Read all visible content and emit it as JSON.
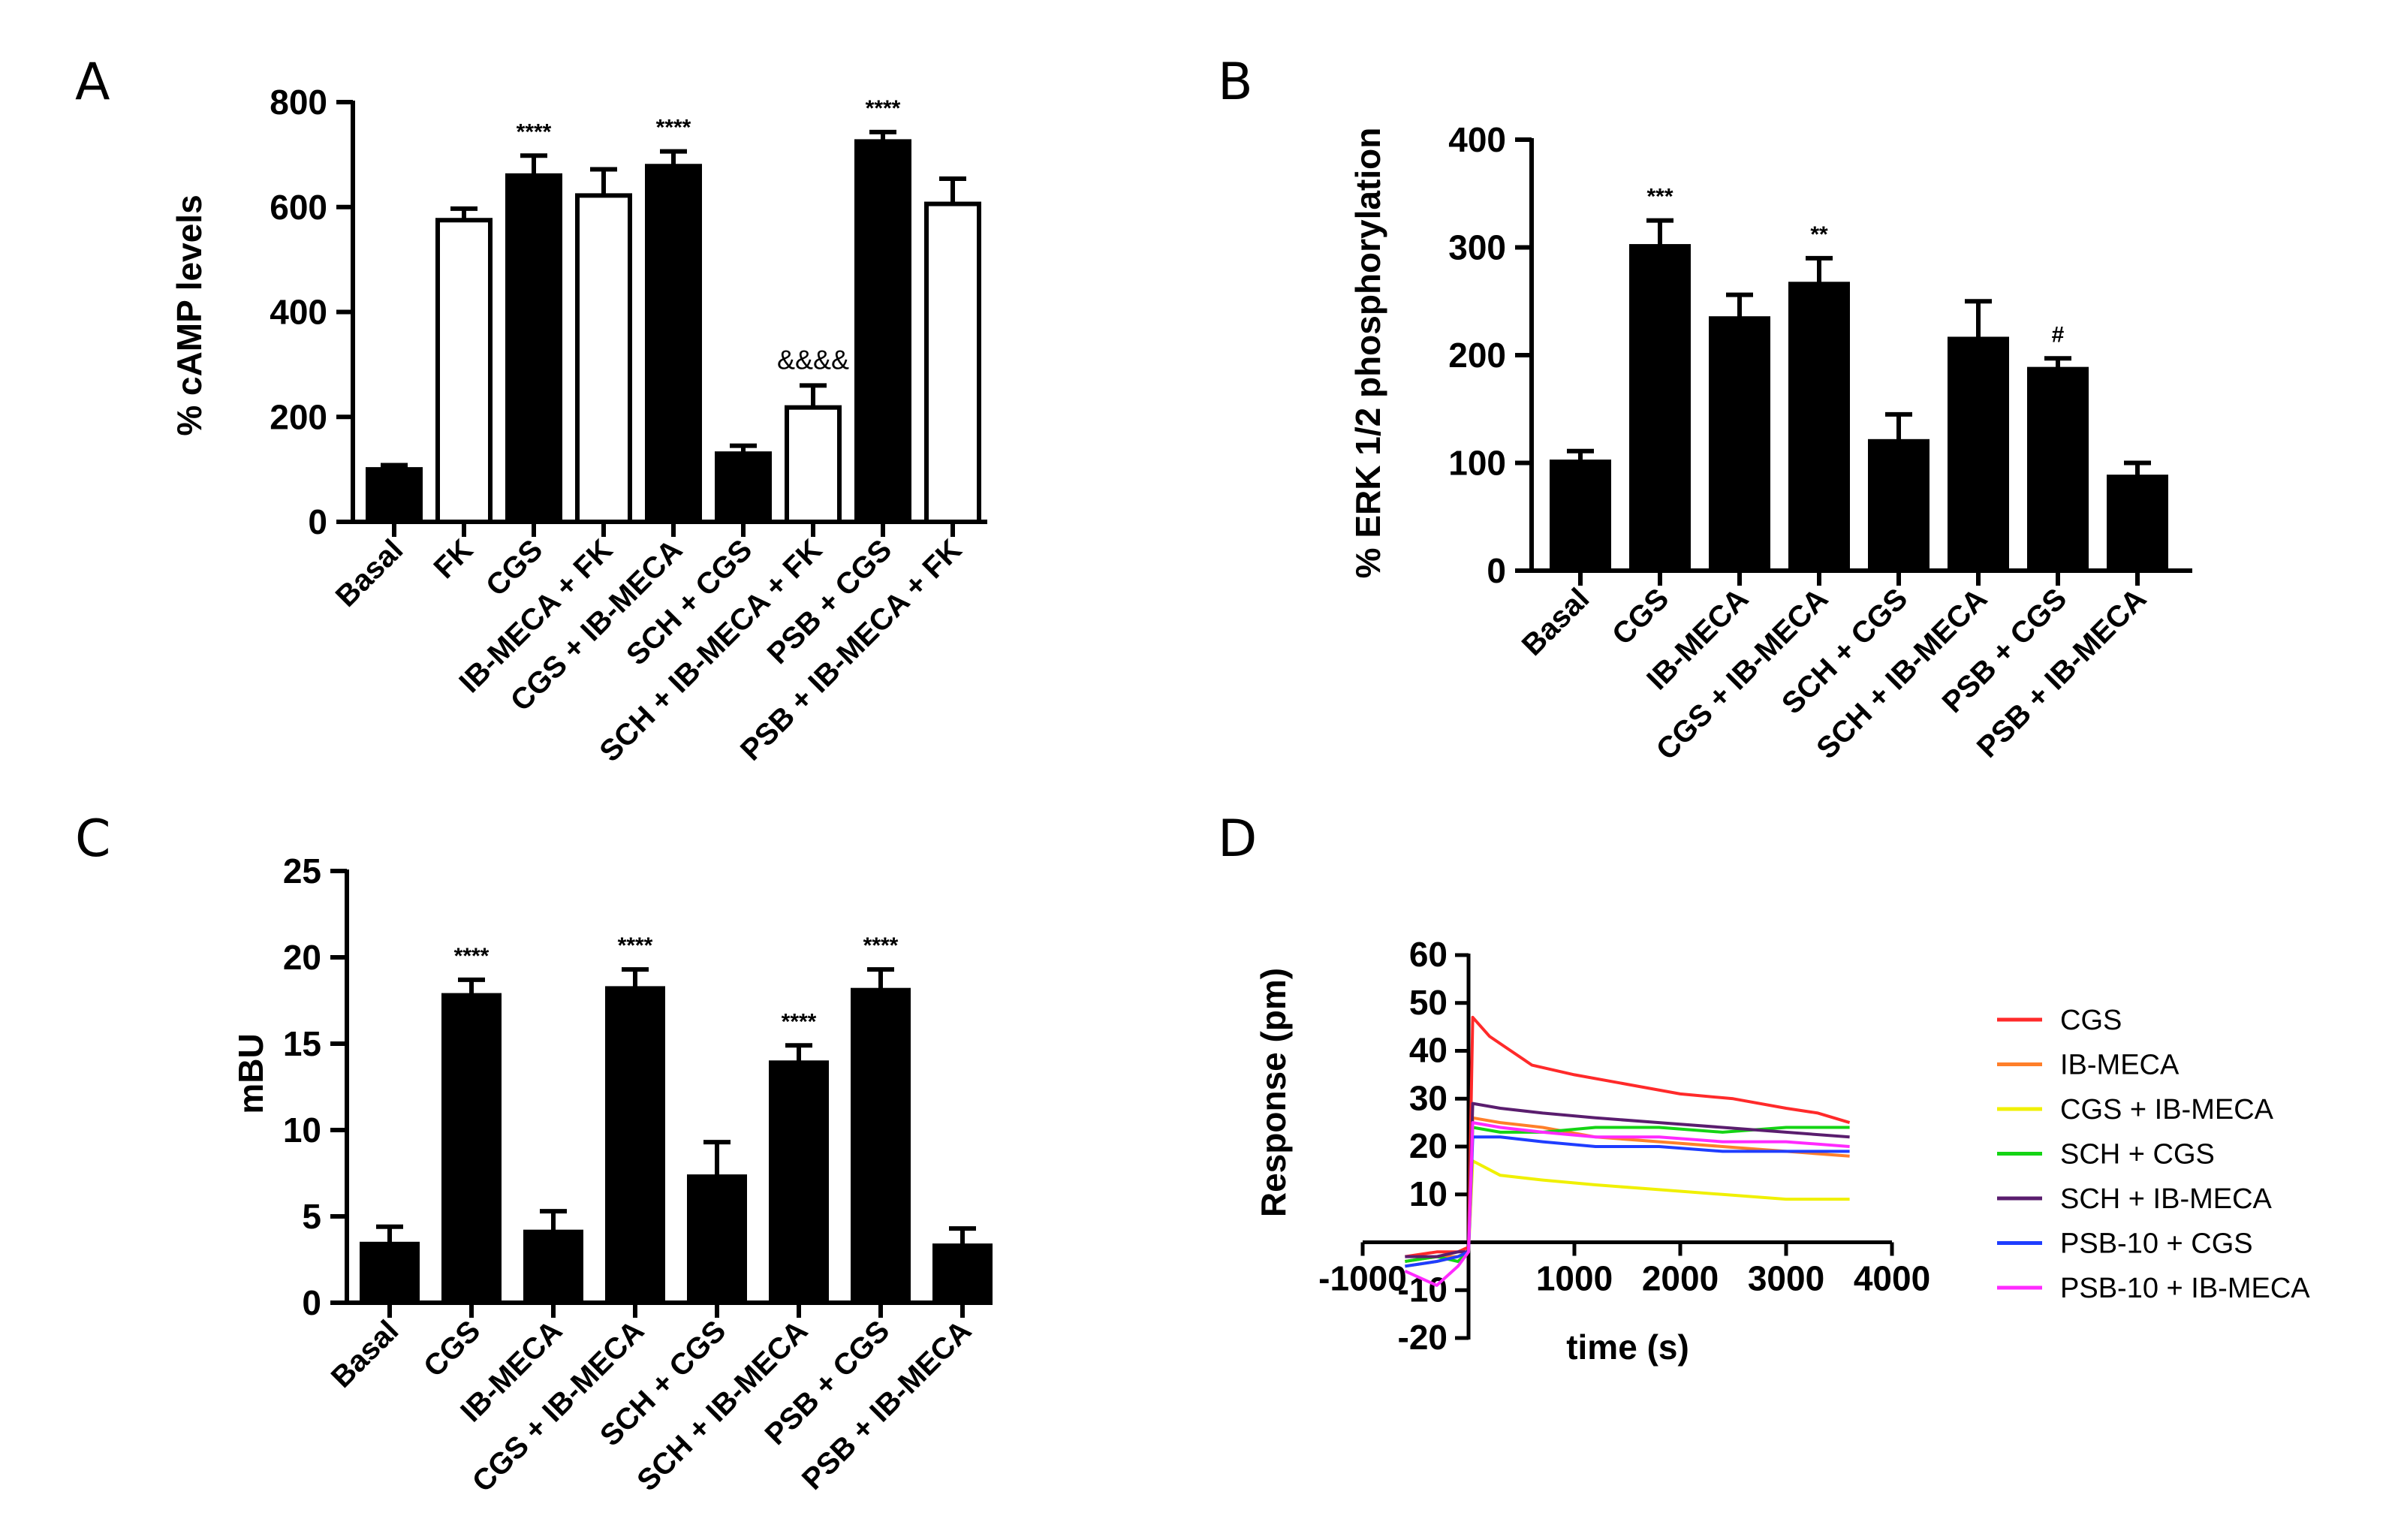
{
  "panels": {
    "A": {
      "letter": "A"
    },
    "B": {
      "letter": "B"
    },
    "C": {
      "letter": "C"
    },
    "D": {
      "letter": "D"
    }
  },
  "chart_data": [
    {
      "id": "A",
      "type": "bar",
      "ylabel": "% cAMP levels",
      "xlabel": "",
      "ylim": [
        0,
        800
      ],
      "yticks": [
        0,
        200,
        400,
        600,
        800
      ],
      "categories": [
        "Basal",
        "FK",
        "CGS",
        "IB-MECA + FK",
        "CGS + IB-MECA",
        "SCH + CGS",
        "SCH + IB-MECA + FK",
        "PSB + CGS",
        "PSB + IB-MECA + FK"
      ],
      "values": [
        100,
        575,
        660,
        622,
        678,
        130,
        218,
        725,
        606
      ],
      "errors": [
        8,
        22,
        38,
        50,
        28,
        15,
        42,
        18,
        48
      ],
      "fill": [
        "black",
        "white",
        "black",
        "white",
        "black",
        "black",
        "white",
        "black",
        "white"
      ],
      "annotations": [
        "",
        "",
        "****",
        "",
        "****",
        "",
        "&&&&",
        "****",
        ""
      ]
    },
    {
      "id": "B",
      "type": "bar",
      "ylabel": "% ERK 1/2 phosphorylation",
      "xlabel": "",
      "ylim": [
        0,
        400
      ],
      "yticks": [
        0,
        100,
        200,
        300,
        400
      ],
      "categories": [
        "Basal",
        "CGS",
        "IB-MECA",
        "CGS + IB-MECA",
        "SCH + CGS",
        "SCH + IB-MECA",
        "PSB + CGS",
        "PSB + IB-MECA"
      ],
      "values": [
        101,
        301,
        234,
        266,
        120,
        215,
        187,
        87
      ],
      "errors": [
        10,
        24,
        22,
        24,
        25,
        35,
        10,
        13
      ],
      "fill": [
        "black",
        "black",
        "black",
        "black",
        "black",
        "black",
        "black",
        "black"
      ],
      "annotations": [
        "",
        "***",
        "",
        "**",
        "",
        "",
        "#",
        ""
      ]
    },
    {
      "id": "C",
      "type": "bar",
      "ylabel": "mBU",
      "xlabel": "",
      "ylim": [
        0,
        25
      ],
      "yticks": [
        0,
        5,
        10,
        15,
        20,
        25
      ],
      "categories": [
        "Basal",
        "CGS",
        "IB-MECA",
        "CGS + IB-MECA",
        "SCH + CGS",
        "SCH + IB-MECA",
        "PSB + CGS",
        "PSB + IB-MECA"
      ],
      "values": [
        3.4,
        17.8,
        4.1,
        18.2,
        7.3,
        13.9,
        18.1,
        3.3
      ],
      "errors": [
        1.0,
        0.9,
        1.2,
        1.1,
        2.0,
        1.0,
        1.2,
        1.0
      ],
      "fill": [
        "black",
        "black",
        "black",
        "black",
        "black",
        "black",
        "black",
        "black"
      ],
      "annotations": [
        "",
        "****",
        "",
        "****",
        "",
        "****",
        "****",
        ""
      ]
    },
    {
      "id": "D",
      "type": "line",
      "xlabel": "time (s)",
      "ylabel": "Response (pm)",
      "xlim": [
        -1000,
        4000
      ],
      "ylim": [
        -20,
        60
      ],
      "xticks": [
        -1000,
        1000,
        2000,
        3000,
        4000
      ],
      "yticks": [
        -20,
        -10,
        10,
        20,
        30,
        40,
        50,
        60
      ],
      "legend_position": "right",
      "series": [
        {
          "name": "CGS",
          "color": "#ff2a2a",
          "x": [
            -600,
            -300,
            -100,
            0,
            40,
            200,
            400,
            600,
            1000,
            1500,
            2000,
            2500,
            3000,
            3300,
            3600
          ],
          "y": [
            -3,
            -2,
            -2,
            -1,
            47,
            43,
            40,
            37,
            35,
            33,
            31,
            30,
            28,
            27,
            25
          ]
        },
        {
          "name": "IB-MECA",
          "color": "#ff7f2a",
          "x": [
            -600,
            -300,
            -100,
            0,
            40,
            300,
            700,
            1200,
            1800,
            2400,
            3000,
            3600
          ],
          "y": [
            -4,
            -3,
            -3,
            -2,
            26,
            25,
            24,
            22,
            21,
            20,
            19,
            18
          ]
        },
        {
          "name": "CGS + IB-MECA",
          "color": "#f0f000",
          "x": [
            -600,
            -300,
            -100,
            0,
            40,
            300,
            700,
            1200,
            1800,
            2400,
            3000,
            3600
          ],
          "y": [
            -5,
            -4,
            -3,
            -2,
            17,
            14,
            13,
            12,
            11,
            10,
            9,
            9
          ]
        },
        {
          "name": "SCH + CGS",
          "color": "#14d414",
          "x": [
            -600,
            -300,
            -100,
            0,
            40,
            300,
            700,
            1200,
            1800,
            2400,
            3000,
            3600
          ],
          "y": [
            -4,
            -3,
            -4,
            -2,
            24,
            23,
            23,
            24,
            24,
            23,
            24,
            24
          ]
        },
        {
          "name": "SCH + IB-MECA",
          "color": "#5a1d6e",
          "x": [
            -600,
            -300,
            -100,
            0,
            40,
            300,
            700,
            1200,
            1800,
            2400,
            3000,
            3600
          ],
          "y": [
            -3,
            -3,
            -2,
            -2,
            29,
            28,
            27,
            26,
            25,
            24,
            23,
            22
          ]
        },
        {
          "name": "PSB-10 + CGS",
          "color": "#1f3dff",
          "x": [
            -600,
            -300,
            -100,
            0,
            40,
            300,
            700,
            1200,
            1800,
            2400,
            3000,
            3600
          ],
          "y": [
            -5,
            -4,
            -3,
            -2,
            22,
            22,
            21,
            20,
            20,
            19,
            19,
            19
          ]
        },
        {
          "name": "PSB-10 + IB-MECA",
          "color": "#ff2aff",
          "x": [
            -600,
            -300,
            -100,
            0,
            40,
            300,
            700,
            1200,
            1800,
            2400,
            3000,
            3600
          ],
          "y": [
            -6,
            -9,
            -5,
            -2,
            25,
            24,
            23,
            22,
            22,
            21,
            21,
            20
          ]
        }
      ]
    }
  ]
}
